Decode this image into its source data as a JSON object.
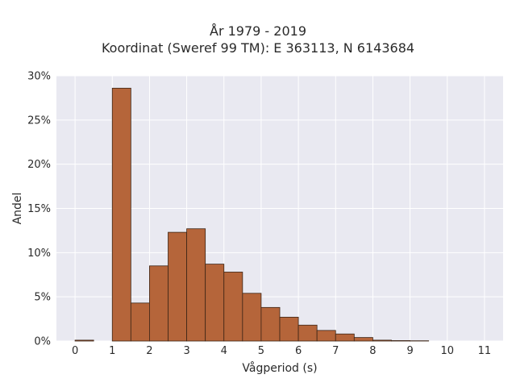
{
  "chart_data": {
    "type": "bar",
    "title_lines": [
      "År 1979 - 2019",
      "Koordinat (Sweref 99 TM): E 363113, N 6143684"
    ],
    "xlabel": "Vågperiod (s)",
    "ylabel": "Andel",
    "xlim": [
      -0.5,
      11.5
    ],
    "ylim": [
      0,
      30
    ],
    "x_ticks": [
      0,
      1,
      2,
      3,
      4,
      5,
      6,
      7,
      8,
      9,
      10,
      11
    ],
    "x_tick_labels": [
      "0",
      "1",
      "2",
      "3",
      "4",
      "5",
      "6",
      "7",
      "8",
      "9",
      "10",
      "11"
    ],
    "y_ticks": [
      0,
      5,
      10,
      15,
      20,
      25,
      30
    ],
    "y_tick_labels": [
      "0%",
      "5%",
      "10%",
      "15%",
      "20%",
      "25%",
      "30%"
    ],
    "grid": true,
    "bin_width": 0.5,
    "bins": [
      {
        "start": 0.0,
        "value": 0.1
      },
      {
        "start": 1.0,
        "value": 28.6
      },
      {
        "start": 1.5,
        "value": 4.3
      },
      {
        "start": 2.0,
        "value": 8.5
      },
      {
        "start": 2.5,
        "value": 12.3
      },
      {
        "start": 3.0,
        "value": 12.7
      },
      {
        "start": 3.5,
        "value": 8.7
      },
      {
        "start": 4.0,
        "value": 7.8
      },
      {
        "start": 4.5,
        "value": 5.4
      },
      {
        "start": 5.0,
        "value": 3.8
      },
      {
        "start": 5.5,
        "value": 2.7
      },
      {
        "start": 6.0,
        "value": 1.8
      },
      {
        "start": 6.5,
        "value": 1.2
      },
      {
        "start": 7.0,
        "value": 0.8
      },
      {
        "start": 7.5,
        "value": 0.4
      },
      {
        "start": 8.0,
        "value": 0.1
      },
      {
        "start": 8.5,
        "value": 0.05
      },
      {
        "start": 9.0,
        "value": 0.03
      }
    ],
    "colors": {
      "bar_fill": "#b5653a",
      "bar_stroke": "#3d2516",
      "plot_background": "#e9e9f1",
      "grid": "#ffffff"
    }
  }
}
